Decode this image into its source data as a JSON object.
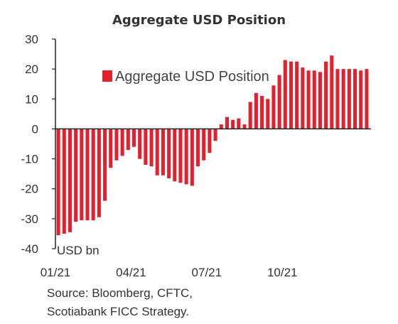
{
  "chart_data": {
    "type": "bar",
    "title": "Aggregate USD Position",
    "xlabel": "",
    "ylabel": "USD bn",
    "ylim": [
      -40,
      30
    ],
    "yticks": [
      30,
      20,
      10,
      0,
      -10,
      -20,
      -30,
      -40
    ],
    "xtick_labels": [
      "01/21",
      "04/21",
      "07/21",
      "10/21"
    ],
    "xtick_index": [
      0,
      13,
      26,
      39
    ],
    "legend": "top-left",
    "grid": false,
    "color": "#e3202e",
    "series": [
      {
        "name": "Aggregate USD Position",
        "values": [
          -35.5,
          -35,
          -34.5,
          -31,
          -30.5,
          -30.5,
          -30.5,
          -29.5,
          -24,
          -13,
          -10.5,
          -9,
          -7,
          -6,
          -10,
          -12,
          -12.5,
          -15.5,
          -15.5,
          -16.5,
          -17.5,
          -18,
          -18.5,
          -19,
          -12.5,
          -10.5,
          -8,
          -4,
          1.5,
          4,
          3,
          3.5,
          1.5,
          9,
          12,
          11,
          10,
          14.5,
          18,
          23,
          22.5,
          22.5,
          20.5,
          19.5,
          19.5,
          19,
          22.5,
          24.5,
          20,
          20,
          20,
          20,
          19.5,
          20
        ]
      }
    ]
  },
  "source_note": [
    "Source: Bloomberg, CFTC,",
    "Scotiabank FICC Strategy."
  ]
}
